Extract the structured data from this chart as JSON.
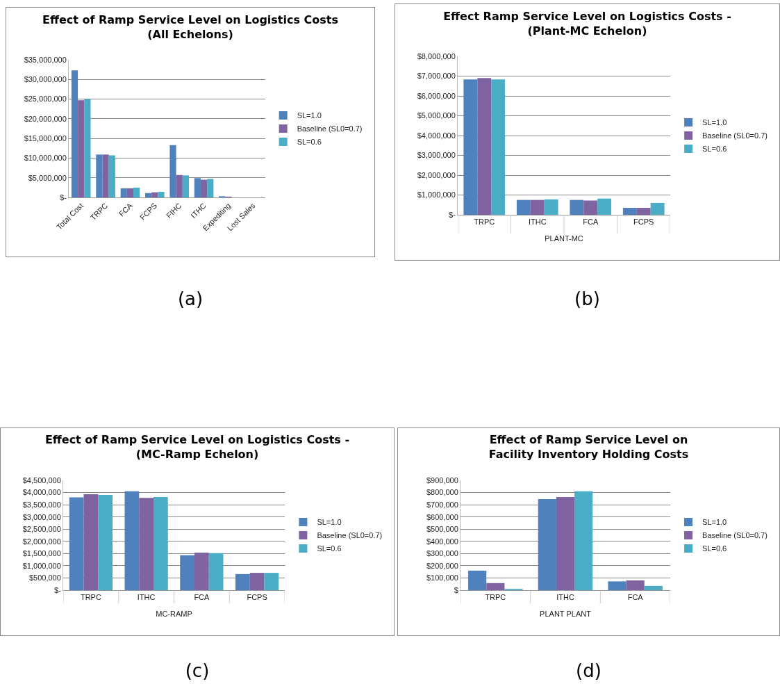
{
  "chart_data": [
    {
      "type": "bar",
      "title": "Effect of Ramp Service Level on Logistics Costs\n(All Echelons)",
      "categories": [
        "Total Cost",
        "TRPC",
        "FCA",
        "FCPS",
        "FIHC",
        "ITHC",
        "Expediting",
        "Lost Sales"
      ],
      "series": [
        {
          "name": "SL=1.0",
          "color": "#4f81bd",
          "values": [
            32300000,
            10900000,
            2300000,
            1100000,
            13300000,
            4900000,
            300000,
            0
          ]
        },
        {
          "name": "Baseline (SL0=0.7)",
          "color": "#8064a2",
          "values": [
            24700000,
            10900000,
            2300000,
            1300000,
            5700000,
            4500000,
            200000,
            0
          ]
        },
        {
          "name": "SL=0.6",
          "color": "#4bacc6",
          "values": [
            25000000,
            10700000,
            2500000,
            1400000,
            5600000,
            4700000,
            0,
            0
          ]
        }
      ],
      "ylim": [
        0,
        35000000
      ],
      "yticks": [
        {
          "value": 0,
          "label": "$-"
        },
        {
          "value": 5000000,
          "label": "$5,000,000"
        },
        {
          "value": 10000000,
          "label": "$10,000,000"
        },
        {
          "value": 15000000,
          "label": "$15,000,000"
        },
        {
          "value": 20000000,
          "label": "$20,000,000"
        },
        {
          "value": 25000000,
          "label": "$25,000,000"
        },
        {
          "value": 30000000,
          "label": "$30,000,000"
        },
        {
          "value": 35000000,
          "label": "$35,000,000"
        }
      ],
      "grid": "y",
      "legend": "right",
      "annotations": [
        "(a)"
      ]
    },
    {
      "type": "bar",
      "title": "Effect Ramp Service Level on Logistics Costs -\n(Plant-MC Echelon)",
      "xlabel": "PLANT-MC",
      "categories": [
        "TRPC",
        "ITHC",
        "FCA",
        "FCPS"
      ],
      "series": [
        {
          "name": "SL=1.0",
          "color": "#4f81bd",
          "values": [
            6830000,
            750000,
            750000,
            350000
          ]
        },
        {
          "name": "Baseline (SL0=0.7)",
          "color": "#8064a2",
          "values": [
            6900000,
            750000,
            720000,
            350000
          ]
        },
        {
          "name": "SL=0.6",
          "color": "#4bacc6",
          "values": [
            6830000,
            780000,
            820000,
            600000
          ]
        }
      ],
      "ylim": [
        0,
        8000000
      ],
      "yticks": [
        {
          "value": 0,
          "label": "$-"
        },
        {
          "value": 1000000,
          "label": "$1,000,000"
        },
        {
          "value": 2000000,
          "label": "$2,000,000"
        },
        {
          "value": 3000000,
          "label": "$3,000,000"
        },
        {
          "value": 4000000,
          "label": "$4,000,000"
        },
        {
          "value": 5000000,
          "label": "$5,000,000"
        },
        {
          "value": 6000000,
          "label": "$6,000,000"
        },
        {
          "value": 7000000,
          "label": "$7,000,000"
        },
        {
          "value": 8000000,
          "label": "$8,000,000"
        }
      ],
      "grid": "y",
      "legend": "right",
      "annotations": [
        "(b)"
      ]
    },
    {
      "type": "bar",
      "title": "Effect of Ramp Service Level on Logistics Costs -\n(MC-Ramp Echelon)",
      "xlabel": "MC-RAMP",
      "categories": [
        "TRPC",
        "ITHC",
        "FCA",
        "FCPS"
      ],
      "series": [
        {
          "name": "SL=1.0",
          "color": "#4f81bd",
          "values": [
            3800000,
            4050000,
            1430000,
            660000
          ]
        },
        {
          "name": "Baseline (SL0=0.7)",
          "color": "#8064a2",
          "values": [
            3930000,
            3780000,
            1540000,
            710000
          ]
        },
        {
          "name": "SL=0.6",
          "color": "#4bacc6",
          "values": [
            3900000,
            3820000,
            1520000,
            710000
          ]
        }
      ],
      "ylim": [
        0,
        4500000
      ],
      "yticks": [
        {
          "value": 0,
          "label": "$-"
        },
        {
          "value": 500000,
          "label": "$500,000"
        },
        {
          "value": 1000000,
          "label": "$1,000,000"
        },
        {
          "value": 1500000,
          "label": "$1,500,000"
        },
        {
          "value": 2000000,
          "label": "$2,000,000"
        },
        {
          "value": 2500000,
          "label": "$2,500,000"
        },
        {
          "value": 3000000,
          "label": "$3,000,000"
        },
        {
          "value": 3500000,
          "label": "$3,500,000"
        },
        {
          "value": 4000000,
          "label": "$4,000,000"
        },
        {
          "value": 4500000,
          "label": "$4,500,000"
        }
      ],
      "grid": "y",
      "legend": "right",
      "annotations": [
        "(c)"
      ]
    },
    {
      "type": "bar",
      "title": "Effect of Ramp Service Level on\nFacility Inventory Holding Costs",
      "xlabel": "PLANT PLANT",
      "categories": [
        "TRPC",
        "ITHC",
        "FCA"
      ],
      "series": [
        {
          "name": "SL=1.0",
          "color": "#4f81bd",
          "values": [
            160000,
            746000,
            72000
          ]
        },
        {
          "name": "Baseline (SL0=0.7)",
          "color": "#8064a2",
          "values": [
            58000,
            763000,
            80000
          ]
        },
        {
          "name": "SL=0.6",
          "color": "#4bacc6",
          "values": [
            10000,
            810000,
            35000
          ]
        }
      ],
      "ylim": [
        0,
        900000
      ],
      "yticks": [
        {
          "value": 0,
          "label": "$"
        },
        {
          "value": 100000,
          "label": "$100,000"
        },
        {
          "value": 200000,
          "label": "$200,000"
        },
        {
          "value": 300000,
          "label": "$300,000"
        },
        {
          "value": 400000,
          "label": "$400,000"
        },
        {
          "value": 500000,
          "label": "$500,000"
        },
        {
          "value": 600000,
          "label": "$600,000"
        },
        {
          "value": 700000,
          "label": "$700,000"
        },
        {
          "value": 800000,
          "label": "$800,000"
        },
        {
          "value": 900000,
          "label": "$900,000"
        }
      ],
      "grid": "y",
      "legend": "right",
      "annotations": [
        "(d)"
      ]
    }
  ]
}
